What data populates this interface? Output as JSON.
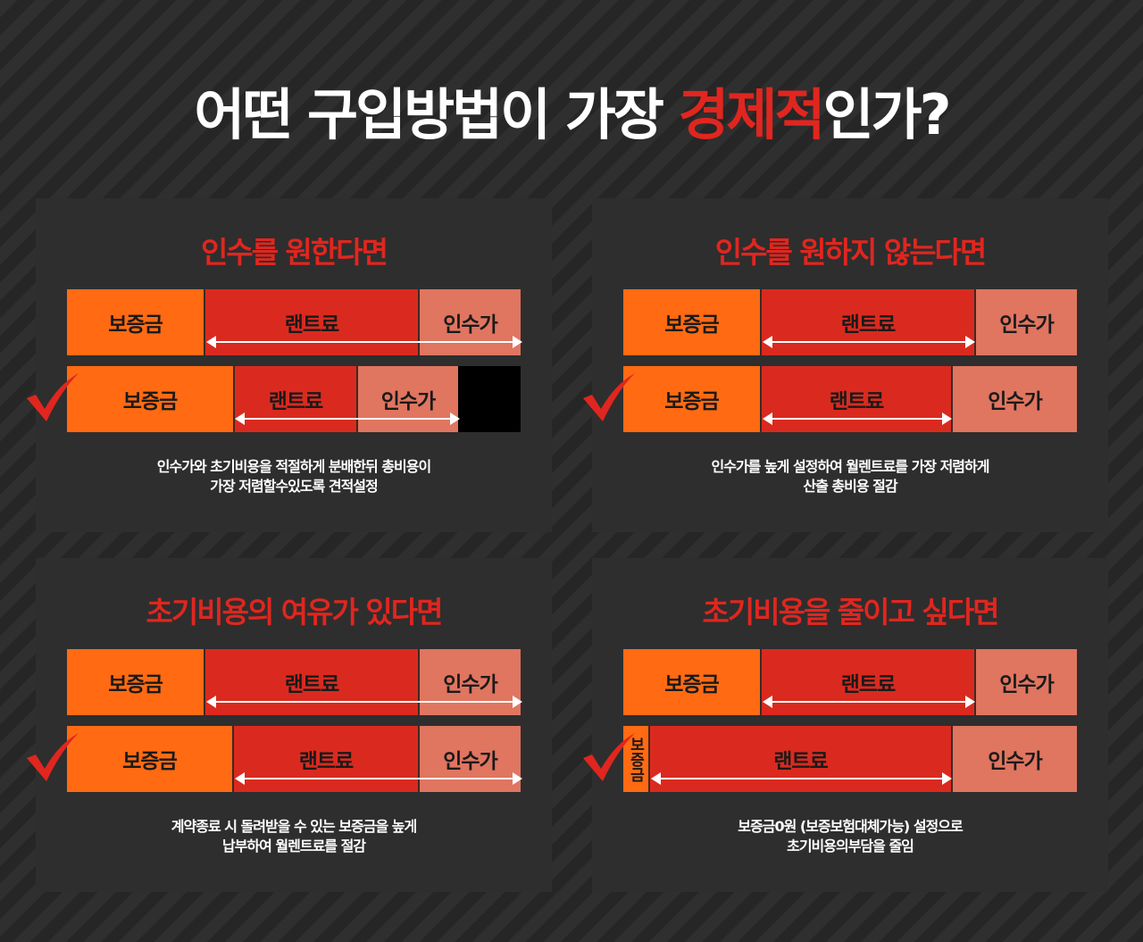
{
  "title": {
    "part1": "어떤 구입방법이 가장 ",
    "highlight": "경제적",
    "part2": "인가?"
  },
  "labels": {
    "deposit": "보증금",
    "rent": "랜트료",
    "buyout": "인수가"
  },
  "colors": {
    "deposit": "#ff6a12",
    "rent": "#da2a1f",
    "buyout": "#e07560",
    "accent": "#e0261f"
  },
  "panels": [
    {
      "title": "인수를 원한다면",
      "desc": [
        "인수가와 초기비용을 적절하게 분배한뒤 총비용이",
        "가장 저렴할수있도록 견적설정"
      ]
    },
    {
      "title": "인수를 원하지 않는다면",
      "desc": [
        "인수가를 높게 설정하여 월렌트료를 가장 저렴하게",
        "산출 총비용 절감"
      ]
    },
    {
      "title": "초기비용의 여유가 있다면",
      "desc": [
        "계약종료 시 돌려받을 수 있는 보증금을 높게",
        "납부하여 월렌트료를 절감"
      ]
    },
    {
      "title": "초기비용을 줄이고 싶다면",
      "desc": [
        "보증금0원 (보증보험대체가능) 설정으로",
        "초기비용의부담을 줄임"
      ]
    }
  ]
}
